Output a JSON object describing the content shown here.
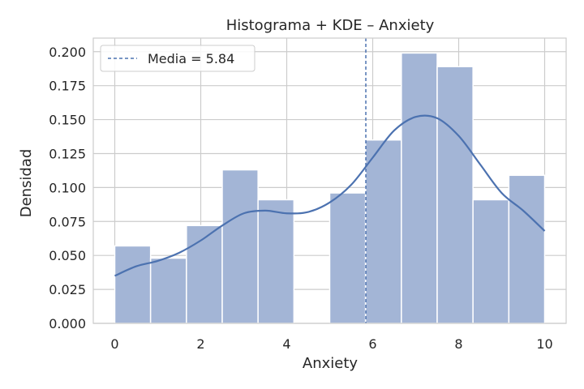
{
  "chart_data": {
    "type": "histogram",
    "title": "Histograma + KDE – Anxiety",
    "xlabel": "Anxiety",
    "ylabel": "Densidad",
    "xlim": [
      -0.5,
      10.5
    ],
    "ylim": [
      0,
      0.21
    ],
    "xticks": [
      0,
      2,
      4,
      6,
      8,
      10
    ],
    "yticks": [
      0.0,
      0.025,
      0.05,
      0.075,
      0.1,
      0.125,
      0.15,
      0.175,
      0.2
    ],
    "ytick_labels": [
      "0.000",
      "0.025",
      "0.050",
      "0.075",
      "0.100",
      "0.125",
      "0.150",
      "0.175",
      "0.200"
    ],
    "xtick_labels": [
      "0",
      "2",
      "4",
      "6",
      "8",
      "10"
    ],
    "grid": true,
    "bin_edges": [
      0,
      0.833,
      1.667,
      2.5,
      3.333,
      4.167,
      5.0,
      5.833,
      6.667,
      7.5,
      8.333,
      9.167,
      10.0
    ],
    "densities": [
      0.057,
      0.048,
      0.072,
      0.113,
      0.091,
      0.0,
      0.096,
      0.135,
      0.199,
      0.189,
      0.091,
      0.109
    ],
    "kde": {
      "x": [
        0,
        0.5,
        1.0,
        1.5,
        2.0,
        2.5,
        3.0,
        3.5,
        4.0,
        4.5,
        5.0,
        5.5,
        6.0,
        6.5,
        7.0,
        7.5,
        8.0,
        8.5,
        9.0,
        9.5,
        10.0
      ],
      "y": [
        0.035,
        0.042,
        0.046,
        0.052,
        0.061,
        0.072,
        0.081,
        0.083,
        0.081,
        0.082,
        0.089,
        0.102,
        0.122,
        0.142,
        0.152,
        0.151,
        0.138,
        0.117,
        0.096,
        0.083,
        0.068
      ]
    },
    "mean": 5.84,
    "legend": {
      "location": "upper-left",
      "entries": [
        "Media = 5.84"
      ]
    },
    "colors": {
      "bar_fill": "#a3b5d6",
      "bar_edge": "#ffffff",
      "kde_line": "#4c72b0",
      "mean_line": "#4c72b0",
      "grid": "#cccccc",
      "frame": "#cccccc"
    }
  }
}
